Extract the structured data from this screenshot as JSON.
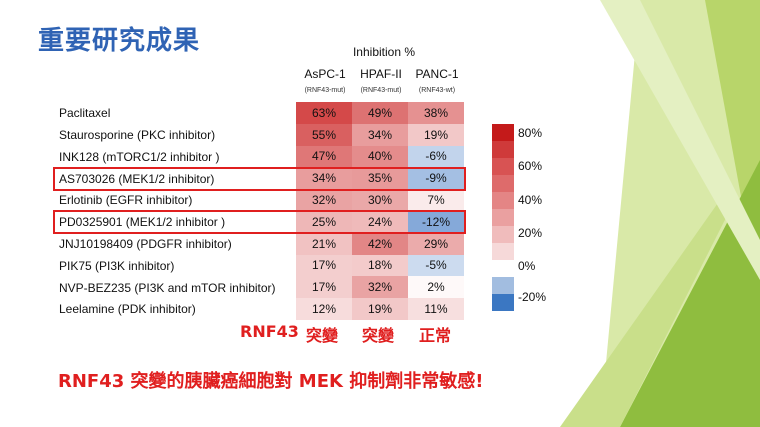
{
  "title": "重要研究成果",
  "header": {
    "main": "Inhibition %",
    "columns": [
      {
        "name": "AsPC-1",
        "sub": "(RNF43-mut)"
      },
      {
        "name": "HPAF-II",
        "sub": "(RNF43-mut)"
      },
      {
        "name": "PANC-1",
        "sub": "(RNF43-wt)"
      }
    ]
  },
  "rows": [
    {
      "label": "Paclitaxel",
      "values": [
        "63%",
        "49%",
        "38%"
      ]
    },
    {
      "label": "Staurosporine (PKC inhibitor)",
      "values": [
        "55%",
        "34%",
        "19%"
      ]
    },
    {
      "label": "INK128 (mTORC1/2 inhibitor )",
      "values": [
        "47%",
        "40%",
        "-6%"
      ]
    },
    {
      "label": "AS703026 (MEK1/2 inhibitor)",
      "values": [
        "34%",
        "35%",
        "-9%"
      ]
    },
    {
      "label": "Erlotinib (EGFR inhibitor)",
      "values": [
        "32%",
        "30%",
        "7%"
      ]
    },
    {
      "label": "PD0325901 (MEK1/2 inhibitor )",
      "values": [
        "25%",
        "24%",
        "-12%"
      ]
    },
    {
      "label": "JNJ10198409 (PDGFR inhibitor)",
      "values": [
        "21%",
        "42%",
        "29%"
      ]
    },
    {
      "label": "PIK75 (PI3K inhibitor)",
      "values": [
        "17%",
        "18%",
        "-5%"
      ]
    },
    {
      "label": "NVP-BEZ235 (PI3K and mTOR inhibitor)",
      "values": [
        "17%",
        "32%",
        "2%"
      ]
    },
    {
      "label": "Leelamine (PDK inhibitor)",
      "values": [
        "12%",
        "19%",
        "11%"
      ]
    }
  ],
  "legend": {
    "labels": [
      "80%",
      "60%",
      "40%",
      "20%",
      "0%",
      "-20%"
    ],
    "colors": [
      "#c41a1a",
      "#cf3a3a",
      "#d85353",
      "#de6b6b",
      "#e48585",
      "#eaa0a0",
      "#f0bcbc",
      "#f6d9d9",
      "#ffffff",
      "#a2bde0",
      "#3b77c2"
    ]
  },
  "bottom_labels": [
    "RNF43",
    "突變",
    "突變",
    "正常"
  ],
  "conclusion": "RNF43 突變的胰臟癌細胞對 MEK 抑制劑非常敏感!",
  "colors": {
    "title": "#2f63b4",
    "accent_red": "#e01f1f",
    "green_light": "#c9df8a",
    "green_mid": "#a7cb55",
    "green_dark": "#6aa22e"
  }
}
